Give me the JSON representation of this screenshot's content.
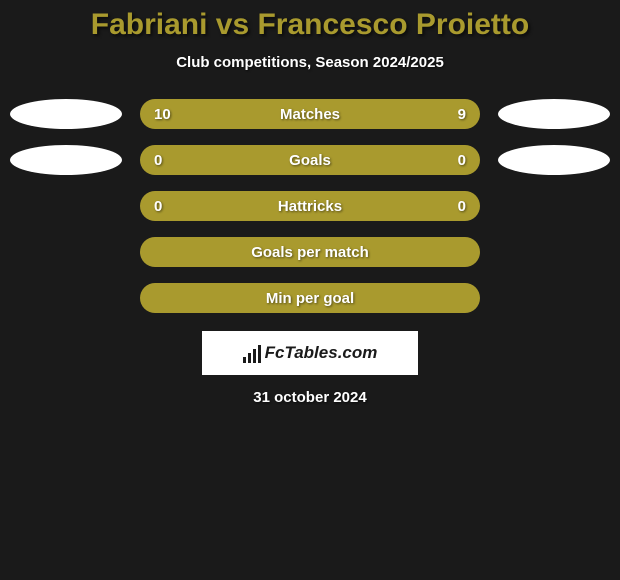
{
  "title": {
    "text": "Fabriani vs Francesco Proietto",
    "color": "#a99a2e",
    "fontsize": 30
  },
  "subtitle": "Club competitions, Season 2024/2025",
  "rows": [
    {
      "label": "Matches",
      "left": "10",
      "right": "9",
      "bar_color": "#a99a2e",
      "show_ellipses": true,
      "show_values": true
    },
    {
      "label": "Goals",
      "left": "0",
      "right": "0",
      "bar_color": "#a99a2e",
      "show_ellipses": true,
      "show_values": true
    },
    {
      "label": "Hattricks",
      "left": "0",
      "right": "0",
      "bar_color": "#a99a2e",
      "show_ellipses": false,
      "show_values": true
    },
    {
      "label": "Goals per match",
      "left": "",
      "right": "",
      "bar_color": "#a99a2e",
      "show_ellipses": false,
      "show_values": false
    },
    {
      "label": "Min per goal",
      "left": "",
      "right": "",
      "bar_color": "#a99a2e",
      "show_ellipses": false,
      "show_values": false
    }
  ],
  "ellipse_color": "#ffffff",
  "footer_logo_text": "FcTables.com",
  "date": "31 october 2024",
  "background_color": "#1a1a1a",
  "text_color": "#ffffff"
}
